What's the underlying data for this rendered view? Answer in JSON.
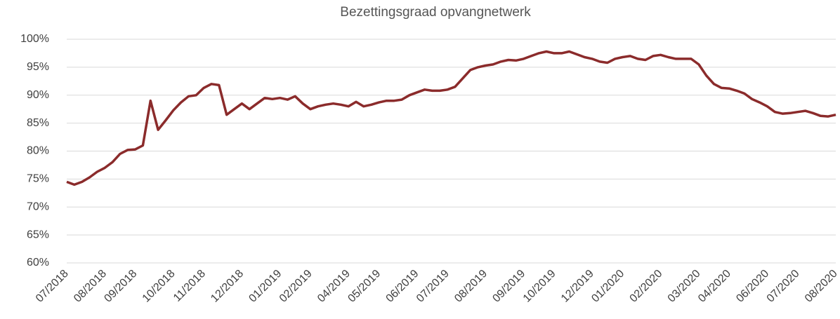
{
  "chart_data": {
    "type": "line",
    "title": "Bezettingsgraad opvangnetwerk",
    "categories": [
      "07/2018",
      null,
      null,
      null,
      null,
      "08/2018",
      null,
      null,
      null,
      "09/2018",
      null,
      null,
      null,
      null,
      "10/2018",
      null,
      null,
      null,
      "11/2018",
      null,
      null,
      null,
      null,
      "12/2018",
      null,
      null,
      null,
      null,
      "01/2019",
      null,
      null,
      null,
      "02/2019",
      null,
      null,
      null,
      null,
      "04/2019",
      null,
      null,
      null,
      "05/2019",
      null,
      null,
      null,
      null,
      "06/2019",
      null,
      null,
      null,
      "07/2019",
      null,
      null,
      null,
      null,
      "08/2019",
      null,
      null,
      null,
      null,
      "09/2019",
      null,
      null,
      null,
      "10/2019",
      null,
      null,
      null,
      null,
      "12/2019",
      null,
      null,
      null,
      "01/2020",
      null,
      null,
      null,
      null,
      "02/2020",
      null,
      null,
      null,
      null,
      "03/2020",
      null,
      null,
      null,
      "04/2020",
      null,
      null,
      null,
      null,
      "06/2020",
      null,
      null,
      null,
      "07/2020",
      null,
      null,
      null,
      null,
      "08/2020"
    ],
    "series": [
      {
        "name": "Bezettingsgraad",
        "color": "#8b2b2b",
        "values": [
          74.5,
          74.0,
          74.5,
          75.3,
          76.3,
          77.0,
          78.0,
          79.5,
          80.2,
          80.3,
          81.0,
          89.0,
          83.8,
          85.5,
          87.3,
          88.7,
          89.8,
          90.0,
          91.3,
          92.0,
          91.8,
          86.5,
          87.5,
          88.5,
          87.5,
          88.5,
          89.5,
          89.3,
          89.5,
          89.2,
          89.8,
          88.5,
          87.5,
          88.0,
          88.3,
          88.5,
          88.3,
          88.0,
          88.8,
          88.0,
          88.3,
          88.7,
          89.0,
          89.0,
          89.2,
          90.0,
          90.5,
          91.0,
          90.8,
          90.8,
          91.0,
          91.5,
          93.0,
          94.5,
          95.0,
          95.3,
          95.5,
          96.0,
          96.3,
          96.2,
          96.5,
          97.0,
          97.5,
          97.8,
          97.5,
          97.5,
          97.8,
          97.3,
          96.8,
          96.5,
          96.0,
          95.8,
          96.5,
          96.8,
          97.0,
          96.5,
          96.3,
          97.0,
          97.2,
          96.8,
          96.5,
          96.5,
          96.5,
          95.5,
          93.5,
          92.0,
          91.3,
          91.2,
          90.8,
          90.3,
          89.3,
          88.7,
          88.0,
          87.0,
          86.7,
          86.8,
          87.0,
          87.2,
          86.8,
          86.3,
          86.2,
          86.5
        ]
      }
    ],
    "ylim": [
      60,
      100
    ],
    "yticks": [
      {
        "value": 60,
        "label": "60%"
      },
      {
        "value": 65,
        "label": "65%"
      },
      {
        "value": 70,
        "label": "70%"
      },
      {
        "value": 75,
        "label": "75%"
      },
      {
        "value": 80,
        "label": "80%"
      },
      {
        "value": 85,
        "label": "85%"
      },
      {
        "value": 90,
        "label": "90%"
      },
      {
        "value": 95,
        "label": "95%"
      },
      {
        "value": 100,
        "label": "100%"
      }
    ],
    "grid": true
  }
}
